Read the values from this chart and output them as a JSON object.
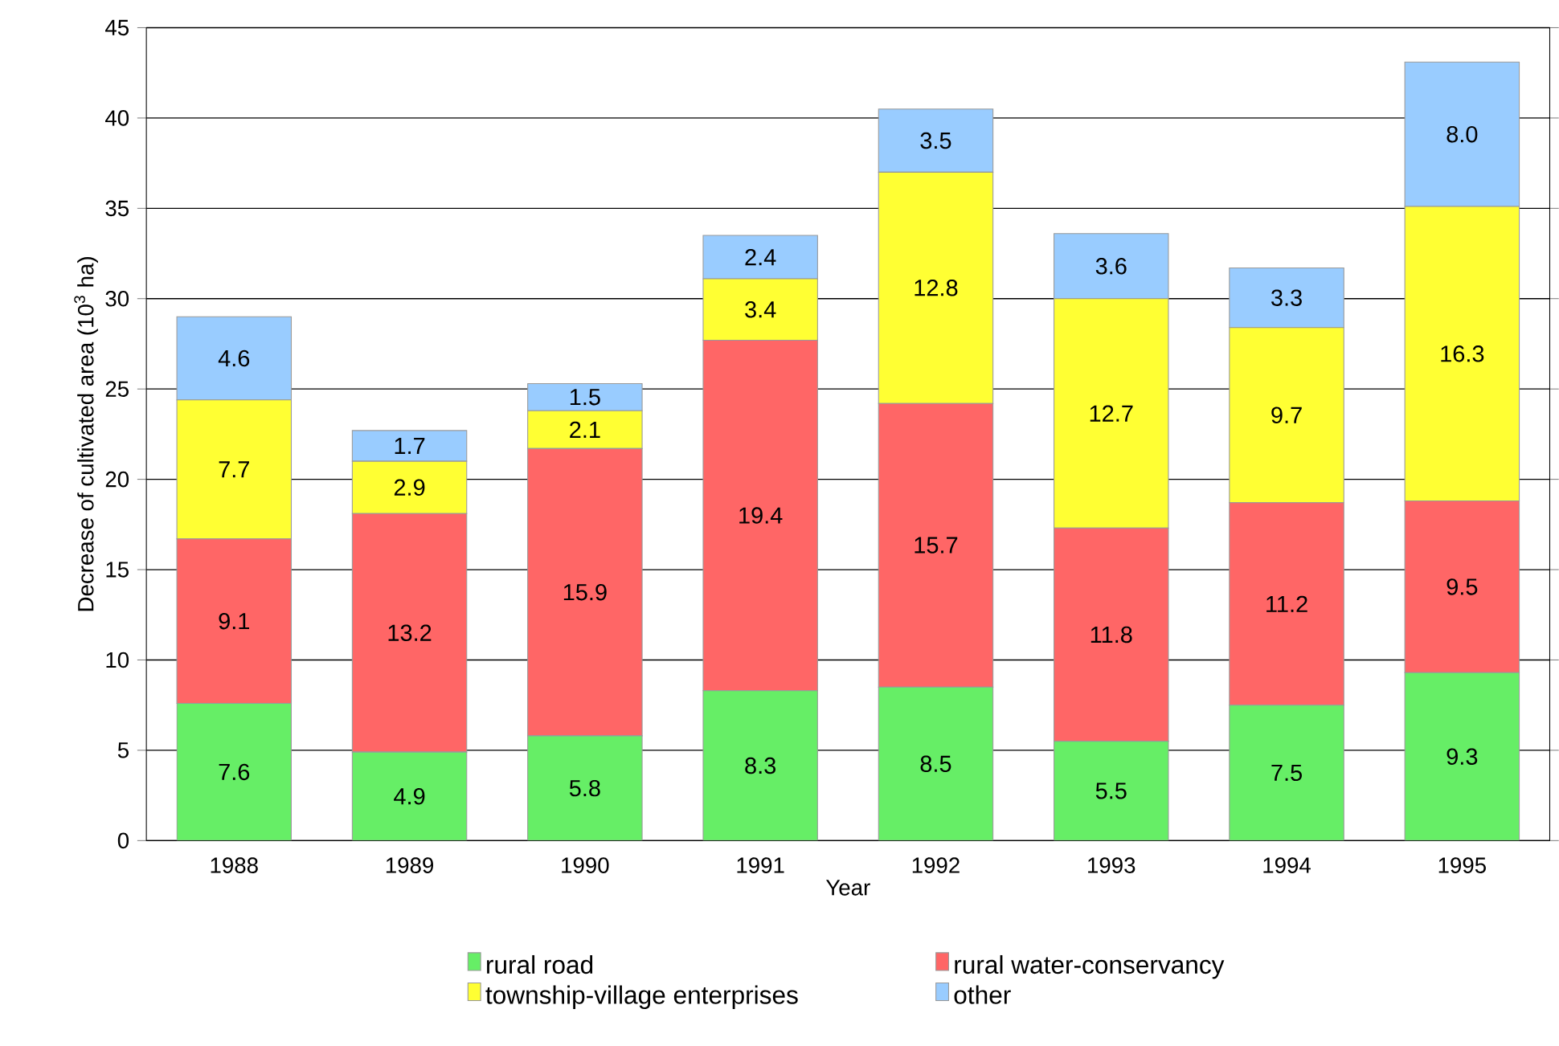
{
  "chart_data": {
    "type": "bar",
    "stacked": true,
    "xlabel": "Year",
    "ylabel": "Decrease of cultivated area (10$^{3}$ ha)",
    "categories": [
      "1988",
      "1989",
      "1990",
      "1991",
      "1992",
      "1993",
      "1994",
      "1995"
    ],
    "series": [
      {
        "name": "rural road",
        "color": "#66ee66",
        "values": [
          7.6,
          4.9,
          5.8,
          8.3,
          8.5,
          5.5,
          7.5,
          9.3
        ],
        "value_labels": [
          "7.6",
          "4.9",
          "5.8",
          "8.3",
          "8.5",
          "5.5",
          "7.5",
          "9.3"
        ]
      },
      {
        "name": "rural water-conservancy",
        "color": "#ff6666",
        "values": [
          9.1,
          13.2,
          15.9,
          19.4,
          15.7,
          11.8,
          11.2,
          9.5
        ],
        "value_labels": [
          "9.1",
          "13.2",
          "15.9",
          "19.4",
          "15.7",
          "11.8",
          "11.2",
          "9.5"
        ]
      },
      {
        "name": "township-village enterprises",
        "color": "#ffff33",
        "values": [
          7.7,
          2.9,
          2.1,
          3.4,
          12.8,
          12.7,
          9.7,
          16.3
        ],
        "value_labels": [
          "7.7",
          "2.9",
          "2.1",
          "3.4",
          "12.8",
          "12.7",
          "9.7",
          "16.3"
        ]
      },
      {
        "name": "other",
        "color": "#99ccff",
        "values": [
          4.6,
          1.7,
          1.5,
          2.4,
          3.5,
          3.6,
          3.3,
          8.0
        ],
        "value_labels": [
          "4.6",
          "1.7",
          "1.5",
          "2.4",
          "3.5",
          "3.6",
          "3.3",
          "8.0"
        ]
      }
    ],
    "ylim": [
      0,
      45
    ],
    "yticks": [
      0,
      5,
      10,
      15,
      20,
      25,
      30,
      35,
      40,
      45
    ],
    "grid": "y",
    "legend": "bottom"
  }
}
